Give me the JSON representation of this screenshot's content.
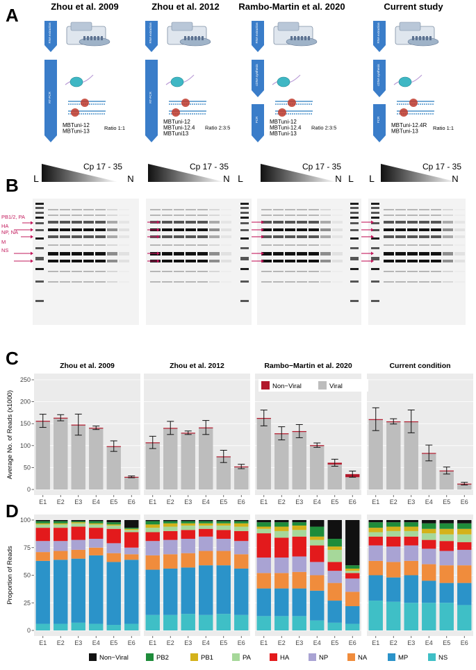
{
  "panel_letters": [
    "A",
    "B",
    "C",
    "D"
  ],
  "panelA": {
    "columns": [
      {
        "title": "Zhou et al. 2009",
        "steps": [
          "RNA extraction",
          "RT-PCR"
        ],
        "primers": [
          "MBTuni-12",
          "MBTuni-13"
        ],
        "ratio": "Ratio 1:1"
      },
      {
        "title": "Zhou et al. 2012",
        "steps": [
          "RNA extraction",
          "RT-PCR"
        ],
        "primers": [
          "MBTuni-12",
          "MBTuni-12.4",
          "MBTuni13"
        ],
        "ratio": "Ratio 2:3:5"
      },
      {
        "title": "Rambo-Martin et al. 2020",
        "steps": [
          "RNA extraction",
          "cDNA synthesis",
          "PCR"
        ],
        "primers": [
          "MBTuni-12",
          "MBTuni-12.4",
          "MBTuni-13"
        ],
        "ratio": "Ratio 2:3:5"
      },
      {
        "title": "Current study",
        "steps": [
          "RNA extraction",
          "cDNA synthesis",
          "PCR"
        ],
        "primers": [
          "MBTuni-12.4R",
          "MBTuni-13"
        ],
        "ratio": "Ratio 1:1"
      }
    ]
  },
  "panelB": {
    "cp_label": "Cp 17 - 35",
    "ladder": "L",
    "neg": "N",
    "segment_labels": [
      "PB1/2, PA",
      "HA",
      "NP, NA",
      "M",
      "NS"
    ],
    "label_color": "#c2185b"
  },
  "chart_data": [
    {
      "type": "bar",
      "ylabel": "Average No. of Reads (x1000)",
      "ylim": [
        0,
        250
      ],
      "yticks": [
        0,
        50,
        100,
        150,
        200,
        250
      ],
      "legend": {
        "entries": [
          "Non−Viral",
          "Viral"
        ],
        "colors": [
          "#b2182b",
          "#bdbdbd"
        ],
        "placement": "top-left of panel 3"
      },
      "panels": [
        {
          "title": "Zhou et al. 2009",
          "categories": [
            "E1",
            "E2",
            "E3",
            "E4",
            "E5",
            "E6"
          ],
          "viral": [
            156,
            163,
            147,
            140,
            98,
            28
          ],
          "nonviral": [
            0.5,
            0.5,
            0.8,
            0.6,
            0.8,
            0.8
          ],
          "err": [
            15,
            7,
            24,
            4,
            12,
            2
          ]
        },
        {
          "title": "Zhou et al. 2012",
          "categories": [
            "E1",
            "E2",
            "E3",
            "E4",
            "E5",
            "E6"
          ],
          "viral": [
            107,
            140,
            129,
            141,
            75,
            52
          ],
          "nonviral": [
            0.3,
            0.3,
            0.3,
            0.3,
            0.4,
            0.4
          ],
          "err": [
            14,
            15,
            4,
            16,
            14,
            5
          ]
        },
        {
          "title": "Rambo−Martin et al. 2020",
          "categories": [
            "E1",
            "E2",
            "E3",
            "E4",
            "E5",
            "E6"
          ],
          "viral": [
            161,
            126,
            131,
            99,
            57,
            28
          ],
          "nonviral": [
            2,
            2,
            2,
            2,
            4,
            7
          ],
          "err": [
            18,
            15,
            15,
            5,
            8,
            7
          ]
        },
        {
          "title": "Current condition",
          "categories": [
            "E1",
            "E2",
            "E3",
            "E4",
            "E5",
            "E6"
          ],
          "viral": [
            160,
            155,
            155,
            83,
            43,
            13
          ],
          "nonviral": [
            0.2,
            0.2,
            0.2,
            0.2,
            0.2,
            0.3
          ],
          "err": [
            26,
            6,
            26,
            18,
            8,
            3
          ]
        }
      ]
    },
    {
      "type": "bar",
      "stacked": true,
      "ylabel": "Proportion of Reads",
      "ylim": [
        0,
        100
      ],
      "yticks": [
        0,
        25,
        50,
        75,
        100
      ],
      "series_order_bottom_to_top": [
        "NS",
        "MP",
        "NA",
        "NP",
        "HA",
        "PA",
        "PB1",
        "PB2",
        "Non-Viral"
      ],
      "legend": {
        "entries": [
          "Non−Viral",
          "PB2",
          "PB1",
          "PA",
          "HA",
          "NP",
          "NA",
          "MP",
          "NS"
        ],
        "colors": [
          "#111111",
          "#1e8c3a",
          "#d4b21a",
          "#a6d89a",
          "#e31a1c",
          "#a9a3d3",
          "#f08c3c",
          "#2b93c9",
          "#3fbfc6"
        ],
        "placement": "bottom"
      },
      "colors": {
        "NS": "#3fbfc6",
        "MP": "#2b93c9",
        "NA": "#f08c3c",
        "NP": "#a9a3d3",
        "HA": "#e31a1c",
        "PA": "#a6d89a",
        "PB1": "#d4b21a",
        "PB2": "#1e8c3a",
        "Non-Viral": "#111111"
      },
      "panels": [
        {
          "categories": [
            "E1",
            "E2",
            "E3",
            "E4",
            "E5",
            "E6"
          ],
          "values": [
            [
              6,
              57,
              8,
              10,
              12,
              3,
              1,
              2,
              1
            ],
            [
              6,
              58,
              8,
              9,
              12,
              3,
              1,
              2,
              1
            ],
            [
              7,
              58,
              8,
              9,
              12,
              3,
              1,
              1,
              1
            ],
            [
              6,
              62,
              7,
              8,
              10,
              3,
              1,
              2,
              1
            ],
            [
              5,
              57,
              8,
              9,
              13,
              3,
              1,
              2,
              2
            ],
            [
              6,
              58,
              5,
              6,
              14,
              2,
              1,
              1,
              7
            ]
          ]
        },
        {
          "categories": [
            "E1",
            "E2",
            "E3",
            "E4",
            "E5",
            "E6"
          ],
          "values": [
            [
              14,
              41,
              13,
              13,
              8,
              4,
              3,
              3,
              1
            ],
            [
              14,
              42,
              13,
              13,
              8,
              4,
              3,
              2,
              1
            ],
            [
              15,
              42,
              13,
              13,
              8,
              4,
              2,
              2,
              1
            ],
            [
              14,
              45,
              13,
              13,
              7,
              3,
              2,
              2,
              1
            ],
            [
              15,
              44,
              13,
              11,
              8,
              4,
              2,
              2,
              1
            ],
            [
              14,
              42,
              13,
              12,
              9,
              4,
              3,
              2,
              1
            ]
          ]
        },
        {
          "categories": [
            "E1",
            "E2",
            "E3",
            "E4",
            "E5",
            "E6"
          ],
          "values": [
            [
              13,
              25,
              14,
              14,
              22,
              4,
              2,
              4,
              2
            ],
            [
              13,
              25,
              14,
              14,
              18,
              6,
              4,
              4,
              2
            ],
            [
              13,
              25,
              15,
              14,
              18,
              6,
              4,
              3,
              2
            ],
            [
              9,
              27,
              14,
              12,
              15,
              5,
              3,
              9,
              6
            ],
            [
              7,
              20,
              16,
              11,
              8,
              11,
              3,
              7,
              17
            ],
            [
              6,
              16,
              13,
              12,
              5,
              2,
              2,
              3,
              41
            ]
          ]
        },
        {
          "categories": [
            "E1",
            "E2",
            "E3",
            "E4",
            "E5",
            "E6"
          ],
          "values": [
            [
              27,
              23,
              13,
              14,
              8,
              4,
              4,
              5,
              2
            ],
            [
              26,
              22,
              14,
              14,
              9,
              5,
              4,
              4,
              2
            ],
            [
              25,
              25,
              13,
              14,
              8,
              5,
              4,
              4,
              2
            ],
            [
              25,
              20,
              15,
              14,
              8,
              6,
              4,
              5,
              3
            ],
            [
              25,
              18,
              16,
              13,
              9,
              6,
              5,
              5,
              3
            ],
            [
              23,
              20,
              16,
              14,
              7,
              7,
              5,
              5,
              3
            ]
          ]
        }
      ]
    }
  ]
}
